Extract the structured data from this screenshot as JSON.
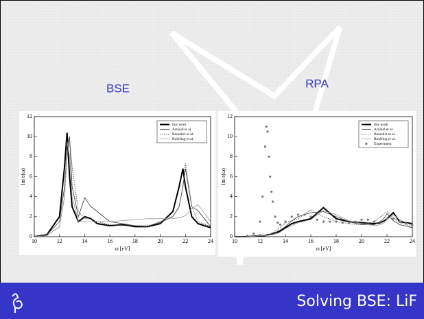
{
  "slide": {
    "labels": [
      "BSE",
      "RPA"
    ],
    "footer": "Solving BSE: LiF"
  },
  "chart_data": [
    {
      "type": "line",
      "xlabel": "ω [eV]",
      "ylabel": "Im ε(ω)",
      "xlim": [
        10,
        24
      ],
      "ylim": [
        0,
        12
      ],
      "xticks": [
        10,
        12,
        14,
        16,
        18,
        20,
        22,
        24
      ],
      "yticks": [
        0,
        2,
        4,
        6,
        8,
        10,
        12
      ],
      "legend": "upper right",
      "x": [
        10,
        11,
        12,
        12.4,
        12.6,
        12.8,
        13,
        13.5,
        14,
        14.5,
        15,
        16,
        17,
        18,
        19,
        20,
        21,
        21.5,
        21.8,
        22,
        22.5,
        23,
        24
      ],
      "series": [
        {
          "name": "this work",
          "color": "#000000",
          "line_style": "thick",
          "values": [
            0,
            0.2,
            2,
            7,
            10.4,
            6,
            3,
            1.5,
            2,
            1.8,
            1.3,
            1.1,
            1.2,
            1,
            1,
            1.3,
            2.5,
            5,
            6.8,
            5,
            2,
            1.3,
            0.9
          ]
        },
        {
          "name": "Arnaud et al.",
          "color": "#333333",
          "line_style": "solid",
          "values": [
            0,
            0.2,
            1.5,
            5,
            9,
            10,
            5,
            2,
            3.9,
            3,
            2.5,
            1.5,
            1.3,
            1.1,
            1,
            1.5,
            2,
            3,
            5,
            6.8,
            3,
            2.6,
            1
          ]
        },
        {
          "name": "Benedict et al.",
          "color": "#555555",
          "line_style": "dotted",
          "values": [
            0,
            0.1,
            1,
            4,
            8,
            9.7,
            7,
            2.5,
            1.8,
            1.8,
            1.5,
            1.2,
            1.1,
            1.1,
            1.1,
            1.4,
            2,
            3,
            5,
            7.3,
            3,
            1.5,
            1
          ]
        },
        {
          "name": "Rohlfing et al.",
          "color": "#999999",
          "line_style": "solid",
          "values": [
            0,
            0.1,
            1,
            4,
            9.5,
            8,
            4,
            1.5,
            1.5,
            1.5,
            1.5,
            1.5,
            1.6,
            1.7,
            1.8,
            1.8,
            1.8,
            1.9,
            2,
            2.1,
            2.8,
            3.2,
            1.5
          ]
        }
      ]
    },
    {
      "type": "line",
      "xlabel": "ω [eV]",
      "ylabel": "Im ε(ω)",
      "xlim": [
        10,
        24
      ],
      "ylim": [
        0,
        12
      ],
      "xticks": [
        10,
        12,
        14,
        16,
        18,
        20,
        22,
        24
      ],
      "yticks": [
        0,
        2,
        4,
        6,
        8,
        10,
        12
      ],
      "legend": "upper right",
      "x": [
        10,
        11,
        12,
        12.4,
        12.6,
        12.8,
        13,
        13.5,
        14,
        14.5,
        15,
        16,
        17,
        18,
        19,
        20,
        21,
        21.5,
        21.8,
        22,
        22.5,
        23,
        24
      ],
      "series": [
        {
          "name": "this work",
          "color": "#000000",
          "line_style": "thick",
          "values": [
            0,
            0,
            0.1,
            0.1,
            0.2,
            0.2,
            0.3,
            0.5,
            0.9,
            1.3,
            1.5,
            1.8,
            2.9,
            1.8,
            1.5,
            1.4,
            1.3,
            1.4,
            1.6,
            1.8,
            2.4,
            1.5,
            1.3
          ]
        },
        {
          "name": "Arnaud et al.",
          "color": "#333333",
          "line_style": "solid",
          "values": [
            0,
            0,
            0.1,
            0.1,
            0.2,
            0.2,
            0.3,
            0.6,
            1,
            1.6,
            2,
            2.4,
            2.5,
            2,
            1.5,
            1.2,
            1.2,
            1.5,
            1.9,
            2.3,
            1.6,
            1.2,
            0.9
          ]
        },
        {
          "name": "Benedict et al.",
          "color": "#555555",
          "line_style": "dotted",
          "values": [
            0,
            0,
            0.1,
            0.1,
            0.2,
            0.3,
            0.4,
            0.8,
            1.4,
            1.6,
            1.8,
            2.7,
            2,
            1.5,
            1.3,
            1.2,
            1.5,
            2,
            2.3,
            2.5,
            1.9,
            1.4,
            1
          ]
        },
        {
          "name": "Rohlfing et al.",
          "color": "#999999",
          "line_style": "solid",
          "values": [
            0,
            0,
            0.1,
            0.1,
            0.1,
            0.2,
            0.2,
            0.4,
            0.8,
            1.1,
            1.4,
            1.7,
            2.6,
            2.2,
            1.6,
            1.3,
            1.1,
            1.2,
            1.4,
            1.7,
            2.2,
            1.7,
            1.1
          ]
        },
        {
          "name": "Experiment",
          "color": "#777777",
          "type": "scatter",
          "x": [
            11,
            11.5,
            12,
            12.2,
            12.4,
            12.5,
            12.6,
            12.7,
            12.8,
            12.9,
            13,
            13.2,
            13.4,
            13.6,
            14,
            14.5,
            15,
            15.5,
            16,
            16.5,
            17,
            17.5,
            18,
            18.5,
            19,
            19.5,
            20,
            20.5,
            21,
            21.5,
            22,
            22.5,
            23,
            23.5,
            24
          ],
          "values": [
            0.1,
            0.3,
            1.5,
            4,
            9,
            11,
            10.5,
            8,
            6,
            4.5,
            3.5,
            2,
            1.4,
            1.2,
            1.5,
            2,
            2.2,
            2.2,
            2,
            1.7,
            1.5,
            1.5,
            1.5,
            1.4,
            1.4,
            1.5,
            1.7,
            1.7,
            1.5,
            1.5,
            1.8,
            1.8,
            1.5,
            1.3,
            1.2
          ]
        }
      ]
    }
  ]
}
